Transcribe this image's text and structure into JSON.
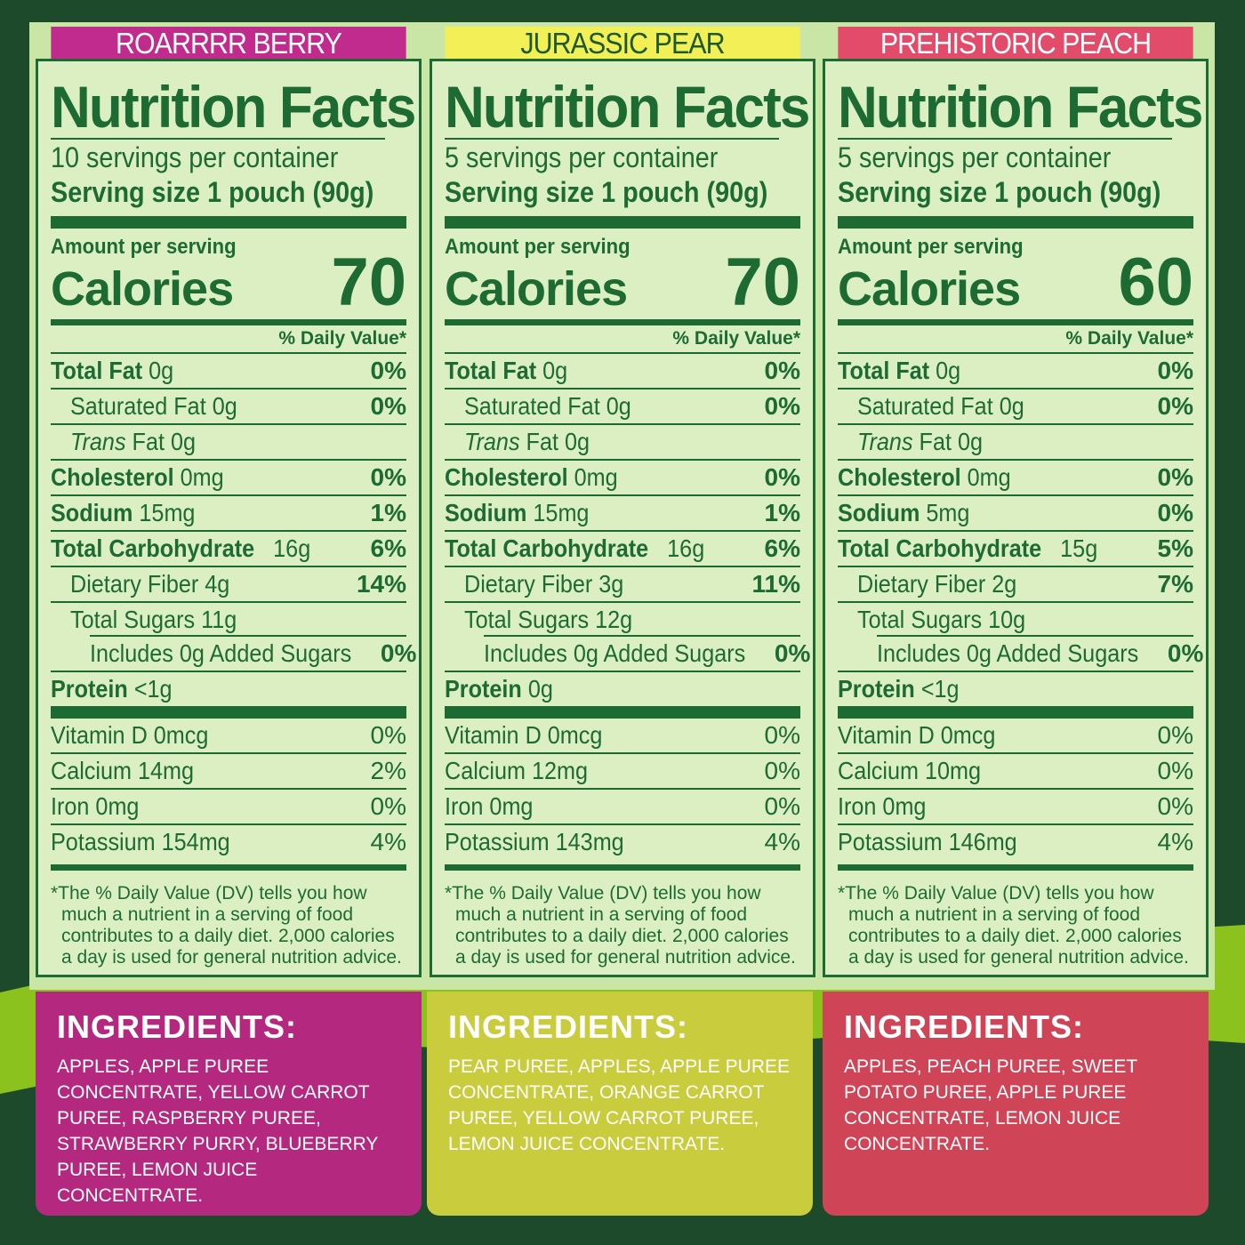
{
  "colors": {
    "label_green": "#1d6b33",
    "berry": "#c12b8e",
    "pear": "#f3ef57",
    "peach": "#e24b6a",
    "background": "#1d4a2b",
    "swoosh": "#8cc21e"
  },
  "panels": [
    {
      "flavor": "ROARRRR BERRY",
      "title": "Nutrition Facts",
      "servings": "10 servings per container",
      "serving_size": "Serving size 1 pouch (90g)",
      "amount": "Amount per serving",
      "calories_label": "Calories",
      "calories": "70",
      "dv_header": "% Daily Value*",
      "total_fat_label": "Total Fat",
      "total_fat": "0g",
      "total_fat_dv": "0%",
      "sat_fat": "Saturated Fat 0g",
      "sat_fat_dv": "0%",
      "trans_label": "Trans",
      "trans_rest": "Fat 0g",
      "chol_label": "Cholesterol",
      "chol": "0mg",
      "chol_dv": "0%",
      "sodium_label": "Sodium",
      "sodium": "15mg",
      "sodium_dv": "1%",
      "carb_label": "Total Carbohydrate",
      "carb": "16g",
      "carb_dv": "6%",
      "fiber": "Dietary Fiber 4g",
      "fiber_dv": "14%",
      "sugars": "Total Sugars 11g",
      "added": "Includes 0g Added Sugars",
      "added_dv": "0%",
      "protein_label": "Protein",
      "protein": "<1g",
      "vitd": "Vitamin D 0mcg",
      "vitd_dv": "0%",
      "calcium": "Calcium 14mg",
      "calcium_dv": "2%",
      "iron": "Iron 0mg",
      "iron_dv": "0%",
      "potassium": "Potassium 154mg",
      "potassium_dv": "4%",
      "footnote": "*The % Daily Value (DV) tells you how much a nutrient in a serving of food contributes to a daily diet. 2,000 calories a day is used for general nutrition advice.",
      "ingredients_title": "INGREDIENTS:",
      "ingredients": "APPLES, APPLE PUREE CONCENTRATE, YELLOW CARROT PUREE, RASPBERRY PUREE, STRAWBERRY PURRY, BLUEBERRY PUREE, LEMON JUICE CONCENTRATE."
    },
    {
      "flavor": "JURASSIC PEAR",
      "title": "Nutrition Facts",
      "servings": "5 servings per container",
      "serving_size": "Serving size 1 pouch (90g)",
      "amount": "Amount per serving",
      "calories_label": "Calories",
      "calories": "70",
      "dv_header": "% Daily Value*",
      "total_fat_label": "Total Fat",
      "total_fat": "0g",
      "total_fat_dv": "0%",
      "sat_fat": "Saturated Fat 0g",
      "sat_fat_dv": "0%",
      "trans_label": "Trans",
      "trans_rest": "Fat 0g",
      "chol_label": "Cholesterol",
      "chol": "0mg",
      "chol_dv": "0%",
      "sodium_label": "Sodium",
      "sodium": "15mg",
      "sodium_dv": "1%",
      "carb_label": "Total Carbohydrate",
      "carb": "16g",
      "carb_dv": "6%",
      "fiber": "Dietary Fiber 3g",
      "fiber_dv": "11%",
      "sugars": "Total Sugars 12g",
      "added": "Includes 0g Added Sugars",
      "added_dv": "0%",
      "protein_label": "Protein",
      "protein": "0g",
      "vitd": "Vitamin D 0mcg",
      "vitd_dv": "0%",
      "calcium": "Calcium 12mg",
      "calcium_dv": "0%",
      "iron": "Iron 0mg",
      "iron_dv": "0%",
      "potassium": "Potassium 143mg",
      "potassium_dv": "4%",
      "footnote": "*The % Daily Value (DV) tells you how much a nutrient in a serving of food contributes to a daily diet. 2,000 calories a day is used for general nutrition advice.",
      "ingredients_title": "INGREDIENTS:",
      "ingredients": "PEAR PUREE, APPLES, APPLE PUREE CONCENTRATE, ORANGE CARROT PUREE, YELLOW CARROT PUREE, LEMON JUICE CONCENTRATE."
    },
    {
      "flavor": "PREHISTORIC PEACH",
      "title": "Nutrition Facts",
      "servings": "5 servings per container",
      "serving_size": "Serving size 1 pouch (90g)",
      "amount": "Amount per serving",
      "calories_label": "Calories",
      "calories": "60",
      "dv_header": "% Daily Value*",
      "total_fat_label": "Total Fat",
      "total_fat": "0g",
      "total_fat_dv": "0%",
      "sat_fat": "Saturated Fat 0g",
      "sat_fat_dv": "0%",
      "trans_label": "Trans",
      "trans_rest": "Fat 0g",
      "chol_label": "Cholesterol",
      "chol": "0mg",
      "chol_dv": "0%",
      "sodium_label": "Sodium",
      "sodium": "5mg",
      "sodium_dv": "0%",
      "carb_label": "Total Carbohydrate",
      "carb": "15g",
      "carb_dv": "5%",
      "fiber": "Dietary Fiber 2g",
      "fiber_dv": "7%",
      "sugars": "Total Sugars 10g",
      "added": "Includes 0g Added Sugars",
      "added_dv": "0%",
      "protein_label": "Protein",
      "protein": "<1g",
      "vitd": "Vitamin D 0mcg",
      "vitd_dv": "0%",
      "calcium": "Calcium 10mg",
      "calcium_dv": "0%",
      "iron": "Iron 0mg",
      "iron_dv": "0%",
      "potassium": "Potassium 146mg",
      "potassium_dv": "4%",
      "footnote": "*The % Daily Value (DV) tells you how much a nutrient in a serving of food contributes to a daily diet. 2,000 calories a day is used for general nutrition advice.",
      "ingredients_title": "INGREDIENTS:",
      "ingredients": "APPLES, PEACH PUREE, SWEET POTATO PUREE, APPLE PUREE CONCENTRATE, LEMON JUICE CONCENTRATE."
    }
  ]
}
